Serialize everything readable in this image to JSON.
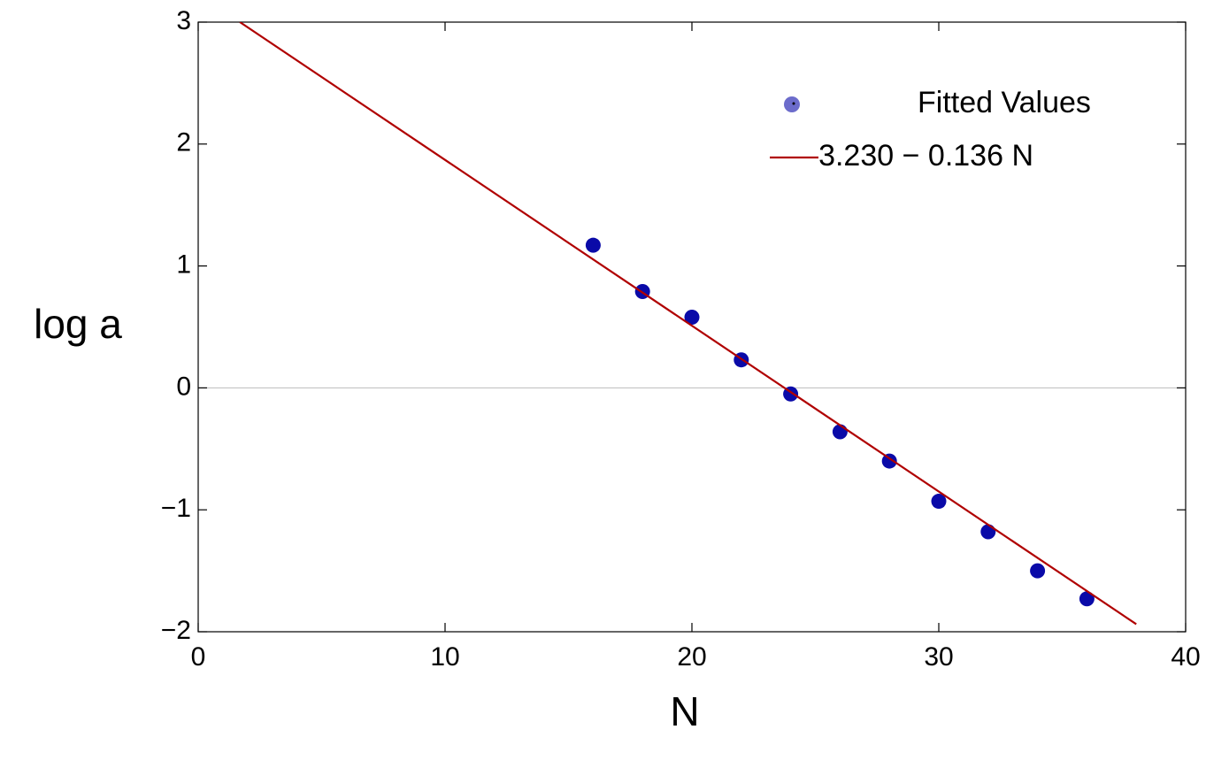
{
  "chart_data": {
    "type": "scatter",
    "x_label": "N",
    "y_label": "log a",
    "xlim": [
      0,
      40
    ],
    "ylim": [
      -2,
      3
    ],
    "xticks": [
      0,
      10,
      20,
      30,
      40
    ],
    "yticks": [
      {
        "value": -2,
        "label": "−2"
      },
      {
        "value": -1,
        "label": "−1"
      },
      0,
      1,
      2,
      3
    ],
    "zero_line": true,
    "legend": "top-right",
    "series": [
      {
        "name": "Fitted Values",
        "type": "scatter",
        "color": "#0a0aa8",
        "x": [
          16,
          18,
          20,
          22,
          24,
          26,
          28,
          30,
          32,
          34,
          36
        ],
        "values": [
          1.17,
          0.79,
          0.58,
          0.23,
          -0.05,
          -0.36,
          -0.6,
          -0.93,
          -1.18,
          -1.5,
          -1.73
        ]
      },
      {
        "name": "3.230 − 0.136 N",
        "type": "line",
        "color": "#b00000",
        "x": [
          1.69,
          38
        ],
        "values": [
          3.0,
          -1.938
        ]
      }
    ]
  }
}
